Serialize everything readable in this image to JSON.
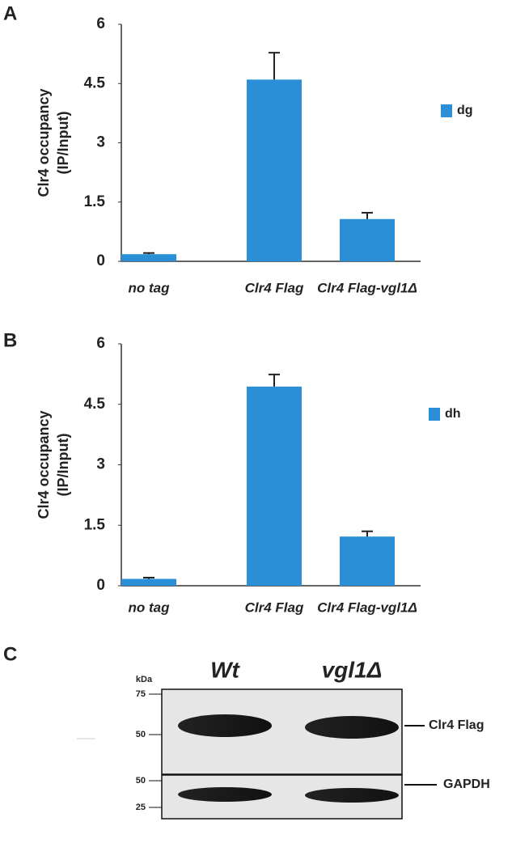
{
  "chart_data": [
    {
      "type": "bar",
      "panel_label": "A",
      "ylabel": [
        "Clr4 occupancy",
        "(IP/Input)"
      ],
      "categories": [
        "no tag",
        "Clr4 Flag",
        "Clr4 Flag-vgl1Δ"
      ],
      "series": [
        {
          "name": "dg",
          "color": "#2a8fd6",
          "values": [
            0.18,
            4.6,
            1.07
          ],
          "errors": [
            0.03,
            0.68,
            0.16
          ]
        }
      ],
      "ylim": [
        0,
        6
      ],
      "yticks": [
        0,
        1.5,
        3,
        4.5,
        6
      ],
      "grid": false
    },
    {
      "type": "bar",
      "panel_label": "B",
      "ylabel": [
        "Clr4 occupancy",
        "(IP/Input)"
      ],
      "categories": [
        "no tag",
        "Clr4 Flag",
        "Clr4 Flag-vgl1Δ"
      ],
      "series": [
        {
          "name": "dh",
          "color": "#2a8fd6",
          "values": [
            0.17,
            4.94,
            1.22
          ],
          "errors": [
            0.03,
            0.3,
            0.13
          ]
        }
      ],
      "ylim": [
        0,
        6
      ],
      "yticks": [
        0,
        1.5,
        3,
        4.5,
        6
      ],
      "grid": false
    }
  ],
  "blot": {
    "panel_label": "C",
    "lanes": [
      "Wt",
      "vgl1Δ"
    ],
    "unit": "kDa",
    "panels": [
      {
        "label": "Clr4 Flag",
        "markers": [
          75,
          50
        ]
      },
      {
        "label": "GAPDH",
        "markers": [
          50,
          25
        ]
      }
    ]
  }
}
